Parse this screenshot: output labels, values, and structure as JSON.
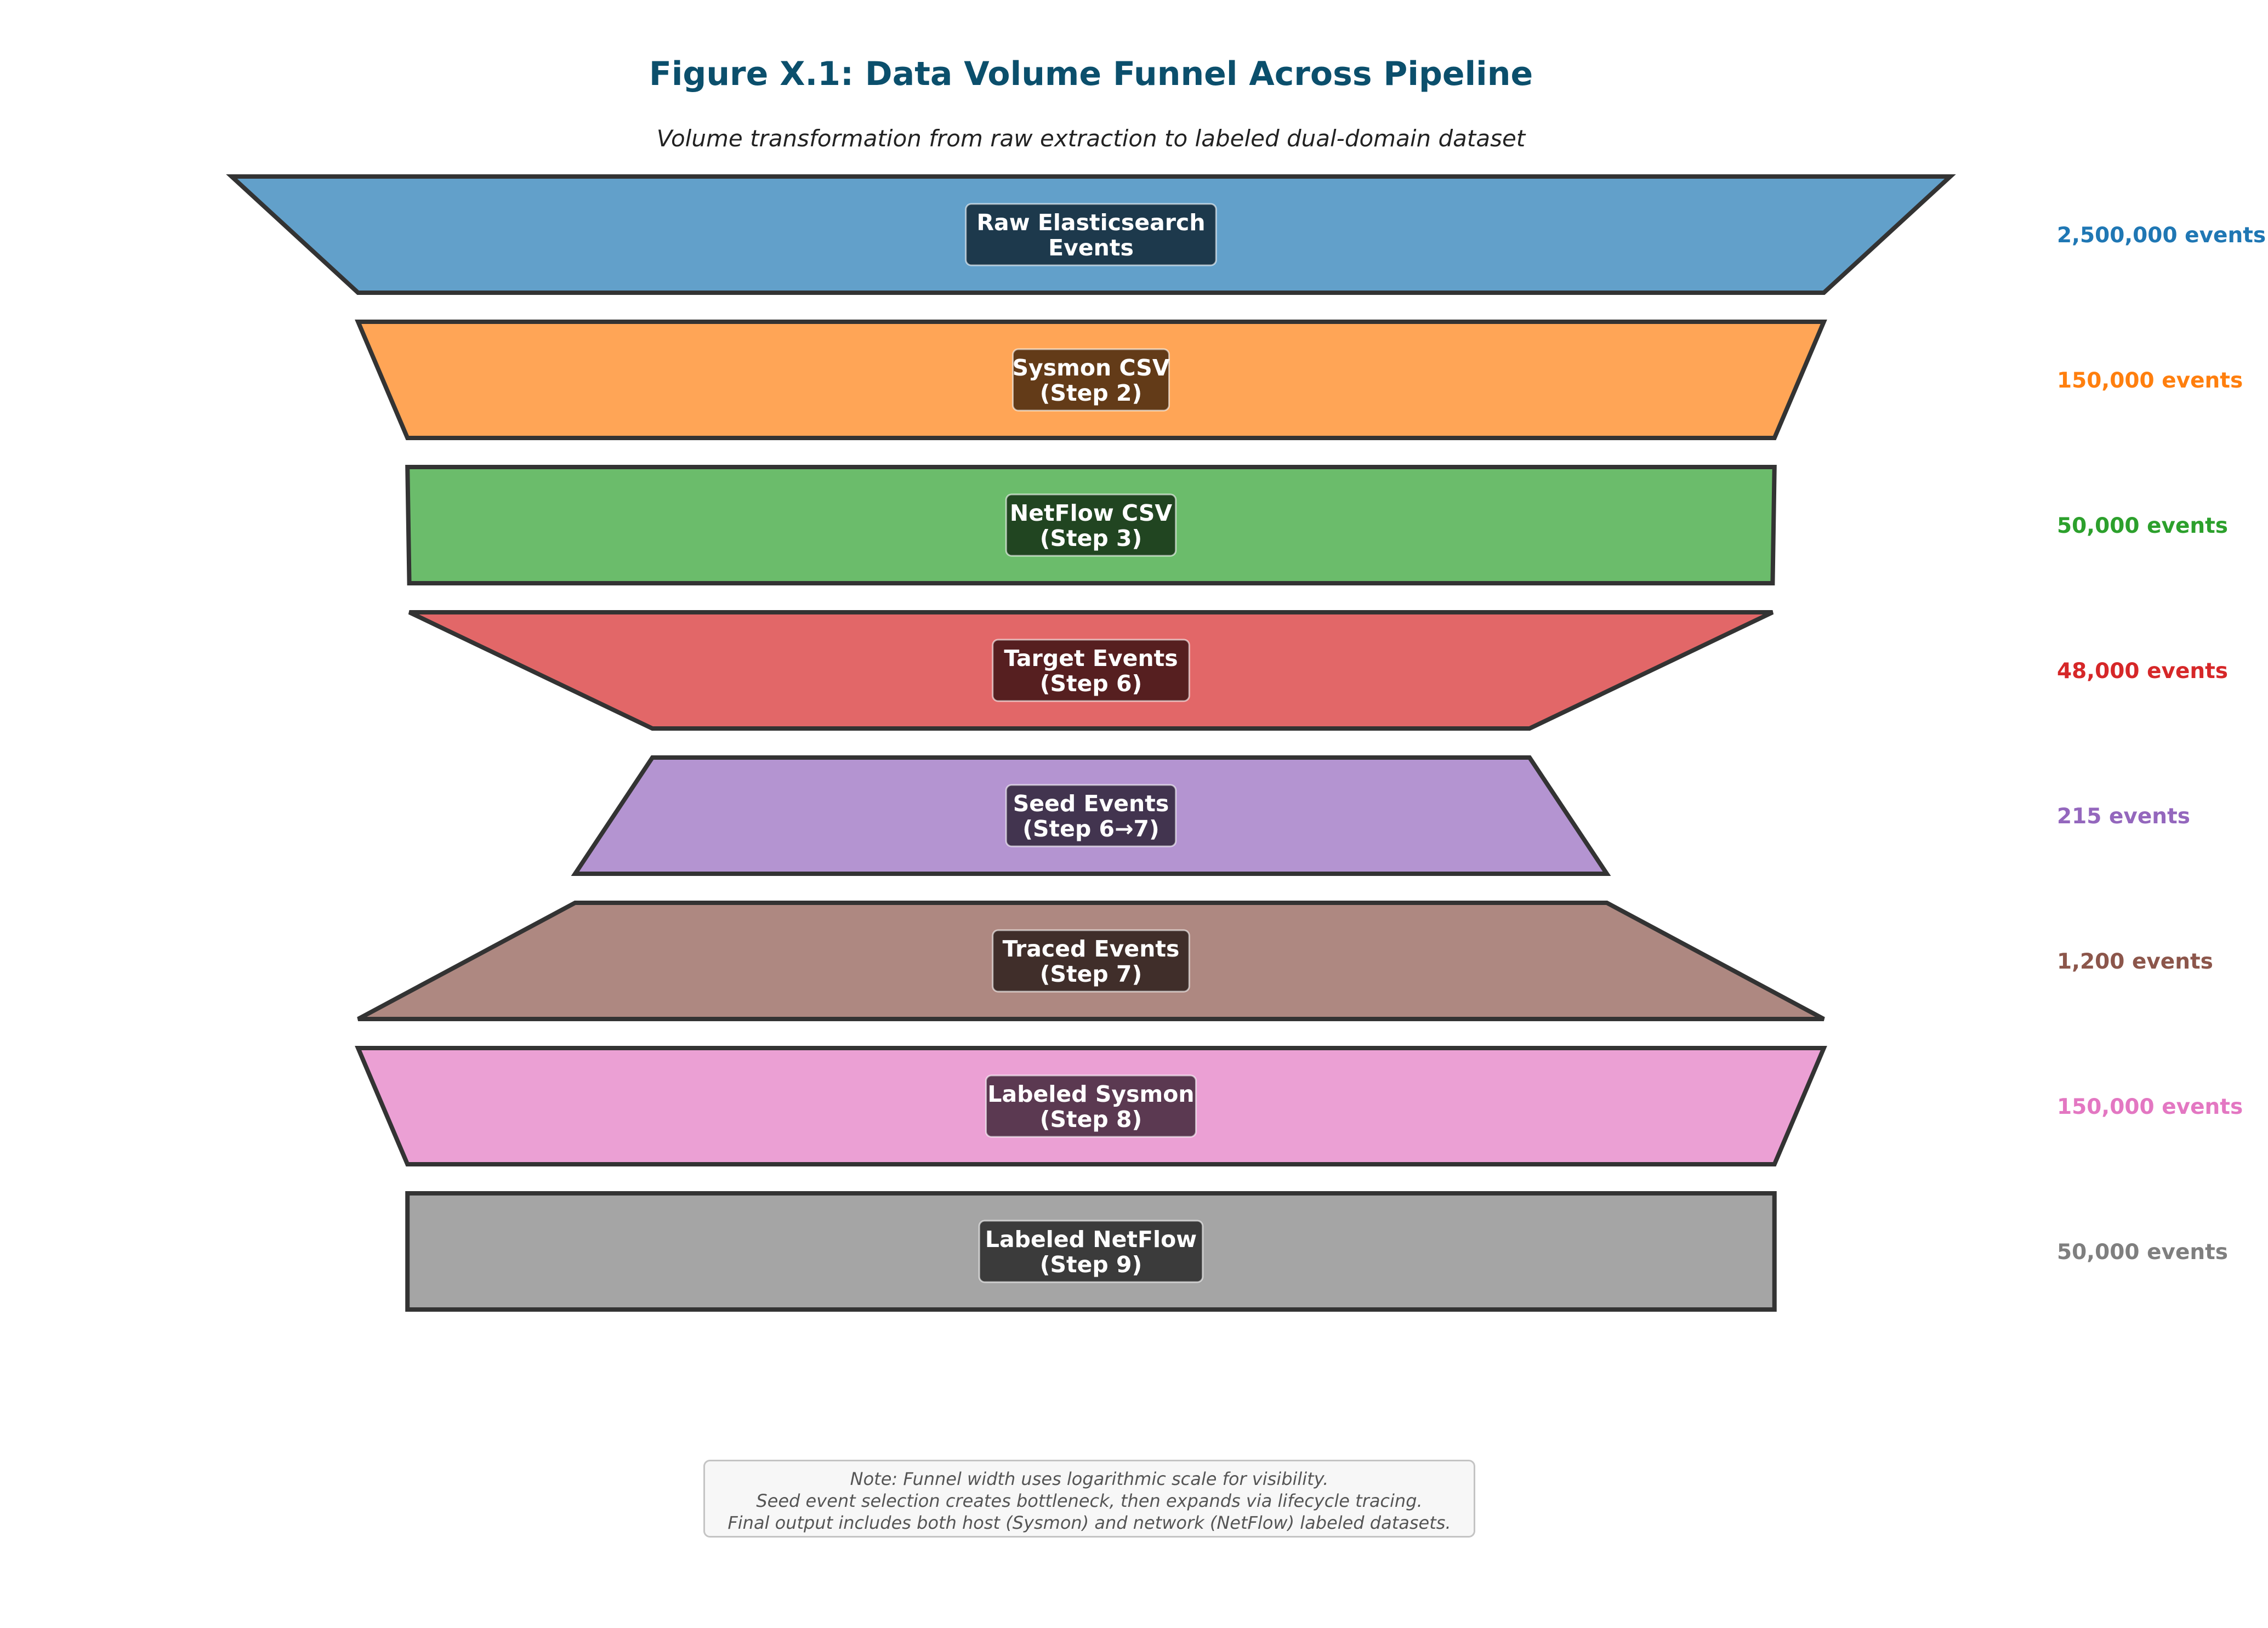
{
  "chart_data": {
    "type": "funnel",
    "title": "Figure X.1: Data Volume Funnel Across Pipeline",
    "subtitle": "Volume transformation from raw extraction to labeled dual-domain dataset",
    "stages": [
      {
        "lines": [
          "Raw Elasticsearch",
          "Events"
        ],
        "value": 2500000,
        "value_label": "2,500,000 events",
        "color": "#1f77b4"
      },
      {
        "lines": [
          "Sysmon CSV",
          "(Step 2)"
        ],
        "value": 150000,
        "value_label": "150,000 events",
        "color": "#ff7f0e"
      },
      {
        "lines": [
          "NetFlow CSV",
          "(Step 3)"
        ],
        "value": 50000,
        "value_label": "50,000 events",
        "color": "#2ca02c"
      },
      {
        "lines": [
          "Target Events",
          "(Step 6)"
        ],
        "value": 48000,
        "value_label": "48,000 events",
        "color": "#d62728"
      },
      {
        "lines": [
          "Seed Events",
          "(Step 6→7)"
        ],
        "value": 215,
        "value_label": "215 events",
        "color": "#9467bd"
      },
      {
        "lines": [
          "Traced Events",
          "(Step 7)"
        ],
        "value": 1200,
        "value_label": "1,200 events",
        "color": "#8c564b"
      },
      {
        "lines": [
          "Labeled Sysmon",
          "(Step 8)"
        ],
        "value": 150000,
        "value_label": "150,000 events",
        "color": "#e377c2"
      },
      {
        "lines": [
          "Labeled NetFlow",
          "(Step 9)"
        ],
        "value": 50000,
        "value_label": "50,000 events",
        "color": "#7f7f7f"
      }
    ],
    "width_scale": "log",
    "note": [
      "Note: Funnel width uses logarithmic scale for visibility.",
      "Seed event selection creates bottleneck, then expands via lifecycle tracing.",
      "Final output includes both host (Sysmon) and network (NetFlow) labeled datasets."
    ]
  }
}
